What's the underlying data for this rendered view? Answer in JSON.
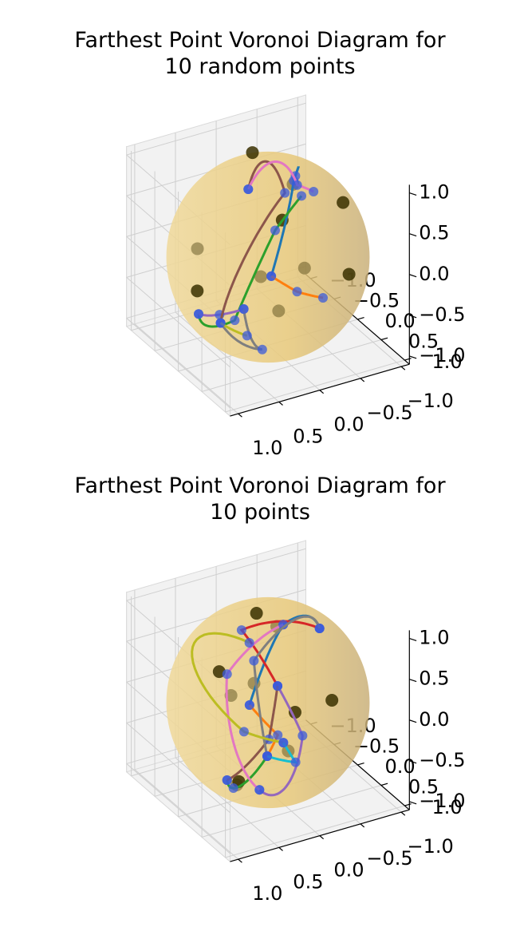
{
  "chart_data": [
    {
      "type": "scatter",
      "projection": "3d",
      "title_line1": "Farthest Point Voronoi Diagram for",
      "title_line2": "10 random points",
      "xticks": [
        "−1.0",
        "−0.5",
        "0.0",
        "0.5",
        "1.0"
      ],
      "yticks": [
        "−1.0",
        "−0.5",
        "0.0",
        "0.5",
        "1.0"
      ],
      "zticks": [
        "−1.0",
        "−0.5",
        "0.0",
        "0.5",
        "1.0"
      ],
      "xlim": [
        -1,
        1
      ],
      "ylim": [
        -1,
        1
      ],
      "zlim": [
        -1,
        1
      ],
      "grid": true,
      "sphere_color": "#e8c97a",
      "point_color": "#3a3000",
      "vertex_color": "#3b5bdb",
      "points": [
        {
          "x": -0.05,
          "y": -0.95,
          "z": 0.35
        },
        {
          "x": -0.65,
          "y": -0.55,
          "z": -0.05
        },
        {
          "x": -0.85,
          "y": -0.3,
          "z": 0.75
        },
        {
          "x": -0.55,
          "y": 0.55,
          "z": -0.55
        },
        {
          "x": 0.1,
          "y": -0.25,
          "z": 0.85
        },
        {
          "x": 0.95,
          "y": 0.1,
          "z": 0.35
        },
        {
          "x": 0.8,
          "y": 0.55,
          "z": 0.3
        },
        {
          "x": 0.4,
          "y": 0.1,
          "z": -0.45
        },
        {
          "x": 0.25,
          "y": -0.85,
          "z": -0.35
        },
        {
          "x": -0.2,
          "y": 0.75,
          "z": 0.2
        }
      ],
      "edges": [
        {
          "color": "#1f77b4"
        },
        {
          "color": "#ff7f0e"
        },
        {
          "color": "#2ca02c"
        },
        {
          "color": "#9467bd"
        },
        {
          "color": "#8c564b"
        },
        {
          "color": "#e377c2"
        },
        {
          "color": "#7f7f7f"
        },
        {
          "color": "#bcbd22"
        }
      ]
    },
    {
      "type": "scatter",
      "projection": "3d",
      "title_line1": "Farthest Point Voronoi Diagram for",
      "title_line2": "10 points",
      "xticks": [
        "−1.0",
        "−0.5",
        "0.0",
        "0.5",
        "1.0"
      ],
      "yticks": [
        "−1.0",
        "−0.5",
        "0.0",
        "0.5",
        "1.0"
      ],
      "zticks": [
        "−1.0",
        "−0.5",
        "0.0",
        "0.5",
        "1.0"
      ],
      "xlim": [
        -1,
        1
      ],
      "ylim": [
        -1,
        1
      ],
      "zlim": [
        -1,
        1
      ],
      "grid": true,
      "sphere_color": "#e8c97a",
      "point_color": "#3a3000",
      "vertex_color": "#3b5bdb",
      "points": [
        {
          "x": -0.85,
          "y": -0.35,
          "z": 0.55
        },
        {
          "x": 0.6,
          "y": 0.8,
          "z": 0.6
        },
        {
          "x": -0.95,
          "y": 0.05,
          "z": -0.1
        },
        {
          "x": 0.95,
          "y": 0.3,
          "z": -0.05
        },
        {
          "x": 0.1,
          "y": -0.05,
          "z": 0.95
        },
        {
          "x": -0.1,
          "y": 0.3,
          "z": -0.95
        },
        {
          "x": -0.55,
          "y": -0.65,
          "z": -0.6
        },
        {
          "x": 0.55,
          "y": 0.7,
          "z": -0.55
        },
        {
          "x": 0.05,
          "y": 0.2,
          "z": 0.3
        },
        {
          "x": -0.2,
          "y": -0.9,
          "z": -0.35
        }
      ],
      "edges": [
        {
          "color": "#1f77b4"
        },
        {
          "color": "#ff7f0e"
        },
        {
          "color": "#2ca02c"
        },
        {
          "color": "#d62728"
        },
        {
          "color": "#9467bd"
        },
        {
          "color": "#8c564b"
        },
        {
          "color": "#e377c2"
        },
        {
          "color": "#7f7f7f"
        },
        {
          "color": "#bcbd22"
        },
        {
          "color": "#17becf"
        }
      ]
    }
  ]
}
